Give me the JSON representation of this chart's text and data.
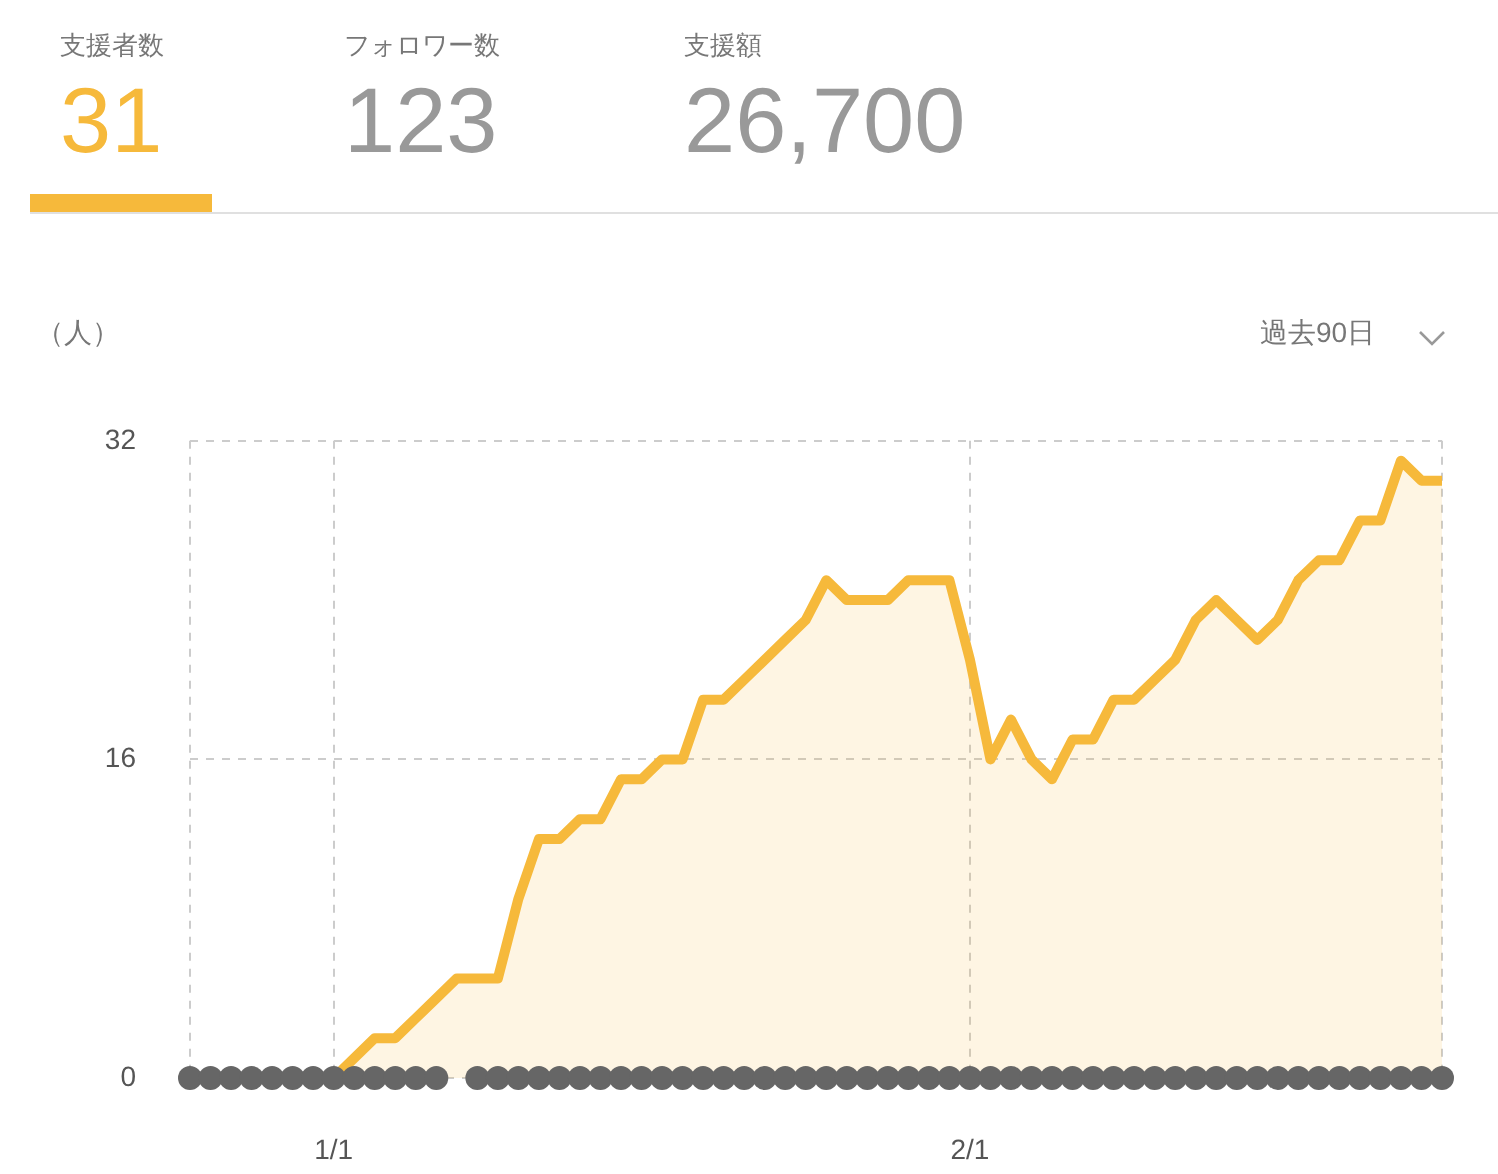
{
  "chart_data": {
    "type": "area",
    "ylabel": "（人）",
    "annotations": [
      "支援者数",
      "31",
      "フォロワー数",
      "123",
      "支援額",
      "26,700",
      "過去90日"
    ],
    "categories": [
      null,
      null,
      null,
      null,
      null,
      null,
      null,
      "1/1",
      null,
      null,
      null,
      null,
      null,
      null,
      null,
      null,
      null,
      null,
      null,
      null,
      null,
      null,
      null,
      null,
      null,
      null,
      null,
      null,
      null,
      null,
      null,
      null,
      null,
      null,
      null,
      null,
      null,
      null,
      "2/1",
      null,
      null,
      null,
      null,
      null,
      null,
      null,
      null,
      null,
      null,
      null,
      null,
      null,
      null,
      null,
      null,
      null,
      null,
      null,
      null,
      null,
      null,
      null
    ],
    "series": [
      {
        "color": "#f6b93b",
        "values": [
          null,
          null,
          null,
          null,
          null,
          null,
          null,
          0,
          1,
          2,
          2,
          3,
          4,
          5,
          5,
          5,
          9,
          12,
          12,
          13,
          13,
          15,
          15,
          16,
          16,
          19,
          19,
          20,
          21,
          22,
          23,
          25,
          24,
          24,
          24,
          25,
          25,
          25,
          21,
          16,
          18,
          16,
          15,
          17,
          17,
          19,
          19,
          20,
          21,
          23,
          24,
          23,
          22,
          23,
          25,
          26,
          26,
          28,
          28,
          31,
          30,
          30
        ]
      },
      {
        "type": "scatter",
        "marker": "circle",
        "color": "#666666",
        "values": [
          0,
          0,
          0,
          0,
          0,
          0,
          0,
          0,
          0,
          0,
          0,
          0,
          0,
          null,
          0,
          0,
          0,
          0,
          0,
          0,
          0,
          0,
          0,
          0,
          0,
          0,
          0,
          0,
          0,
          0,
          0,
          0,
          0,
          0,
          0,
          0,
          0,
          0,
          0,
          0,
          0,
          0,
          0,
          0,
          0,
          0,
          0,
          0,
          0,
          0,
          0,
          0,
          0,
          0,
          0,
          0,
          0,
          0,
          0,
          0,
          0,
          0
        ]
      }
    ],
    "ylim": [
      0,
      32
    ],
    "yticks": [
      0,
      16,
      32
    ],
    "grid": true
  }
}
